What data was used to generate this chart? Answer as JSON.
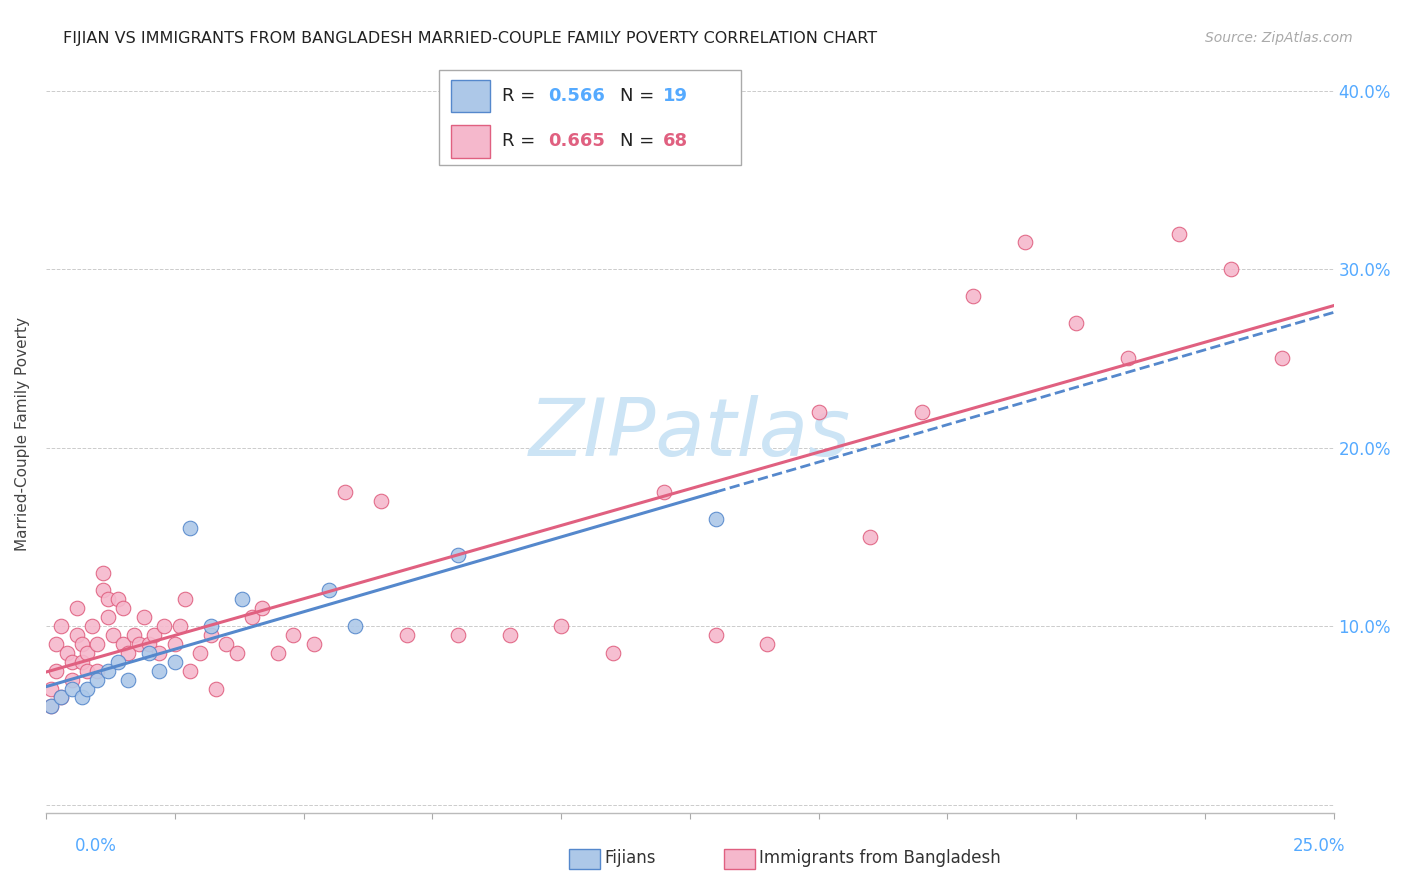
{
  "title": "FIJIAN VS IMMIGRANTS FROM BANGLADESH MARRIED-COUPLE FAMILY POVERTY CORRELATION CHART",
  "source": "Source: ZipAtlas.com",
  "ylabel": "Married-Couple Family Poverty",
  "xlim": [
    0,
    0.25
  ],
  "ylim": [
    -0.005,
    0.42
  ],
  "fijian_color": "#adc8e8",
  "fijian_edge_color": "#5588cc",
  "bangladesh_color": "#f5b8cc",
  "bangladesh_edge_color": "#e06080",
  "fijian_line_color": "#5588cc",
  "bangladesh_line_color": "#e06080",
  "watermark_color": "#cce4f5",
  "fijian_x": [
    0.001,
    0.003,
    0.005,
    0.007,
    0.008,
    0.01,
    0.012,
    0.014,
    0.016,
    0.02,
    0.022,
    0.025,
    0.028,
    0.032,
    0.038,
    0.055,
    0.06,
    0.08,
    0.13
  ],
  "fijian_y": [
    0.055,
    0.06,
    0.065,
    0.06,
    0.065,
    0.07,
    0.075,
    0.08,
    0.07,
    0.085,
    0.075,
    0.08,
    0.155,
    0.1,
    0.115,
    0.12,
    0.1,
    0.14,
    0.16
  ],
  "bangladesh_x": [
    0.001,
    0.001,
    0.002,
    0.002,
    0.003,
    0.003,
    0.004,
    0.005,
    0.005,
    0.006,
    0.006,
    0.007,
    0.007,
    0.008,
    0.008,
    0.009,
    0.01,
    0.01,
    0.011,
    0.011,
    0.012,
    0.012,
    0.013,
    0.014,
    0.015,
    0.015,
    0.016,
    0.017,
    0.018,
    0.019,
    0.02,
    0.021,
    0.022,
    0.023,
    0.025,
    0.026,
    0.027,
    0.028,
    0.03,
    0.032,
    0.033,
    0.035,
    0.037,
    0.04,
    0.042,
    0.045,
    0.048,
    0.052,
    0.058,
    0.065,
    0.07,
    0.08,
    0.09,
    0.1,
    0.11,
    0.12,
    0.13,
    0.14,
    0.15,
    0.16,
    0.17,
    0.18,
    0.19,
    0.2,
    0.21,
    0.22,
    0.23,
    0.24
  ],
  "bangladesh_y": [
    0.055,
    0.065,
    0.075,
    0.09,
    0.06,
    0.1,
    0.085,
    0.07,
    0.08,
    0.095,
    0.11,
    0.08,
    0.09,
    0.075,
    0.085,
    0.1,
    0.075,
    0.09,
    0.12,
    0.13,
    0.105,
    0.115,
    0.095,
    0.115,
    0.09,
    0.11,
    0.085,
    0.095,
    0.09,
    0.105,
    0.09,
    0.095,
    0.085,
    0.1,
    0.09,
    0.1,
    0.115,
    0.075,
    0.085,
    0.095,
    0.065,
    0.09,
    0.085,
    0.105,
    0.11,
    0.085,
    0.095,
    0.09,
    0.175,
    0.17,
    0.095,
    0.095,
    0.095,
    0.1,
    0.085,
    0.175,
    0.095,
    0.09,
    0.22,
    0.15,
    0.22,
    0.285,
    0.315,
    0.27,
    0.25,
    0.32,
    0.3,
    0.25
  ]
}
